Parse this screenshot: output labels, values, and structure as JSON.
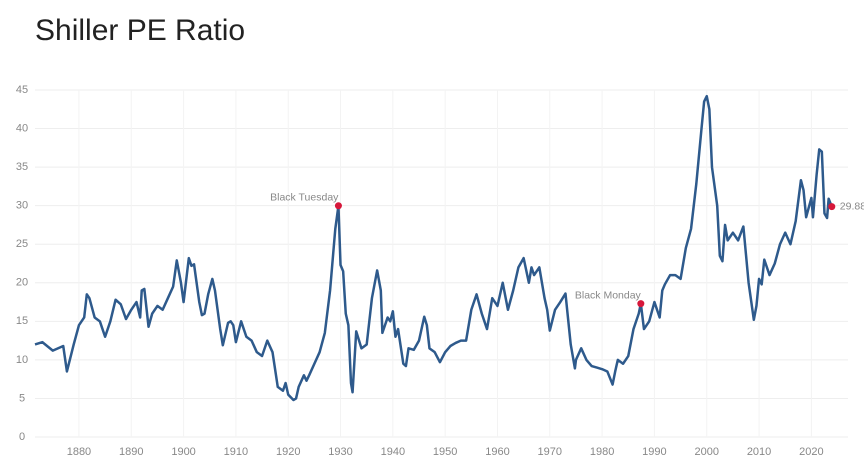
{
  "chart_data": {
    "type": "line",
    "title": "Shiller PE Ratio",
    "color": "#2e5a8c",
    "marker_color": "#d6173a",
    "grid": true,
    "x": [
      1871.6,
      1873,
      1875,
      1877,
      1877.7,
      1879,
      1880,
      1881,
      1881.5,
      1882,
      1883,
      1884,
      1885,
      1886,
      1887,
      1888,
      1889,
      1890,
      1891,
      1891.7,
      1892,
      1892.5,
      1893.3,
      1894,
      1895,
      1896,
      1897,
      1898,
      1898.7,
      1899.5,
      1900,
      1901,
      1901.5,
      1902,
      1903,
      1903.5,
      1904,
      1904.7,
      1905.5,
      1906,
      1907,
      1907.5,
      1908.5,
      1909,
      1909.5,
      1910,
      1911,
      1912,
      1913,
      1914,
      1915,
      1916,
      1917,
      1918,
      1919,
      1919.5,
      1920,
      1921,
      1921.5,
      1922,
      1923,
      1923.5,
      1924,
      1925,
      1926,
      1927,
      1928,
      1929,
      1929.6,
      1930,
      1930.5,
      1931,
      1931.5,
      1932,
      1932.3,
      1933,
      1934,
      1935,
      1936,
      1937,
      1937.7,
      1938,
      1939,
      1939.5,
      1940,
      1940.5,
      1941,
      1942,
      1942.5,
      1943,
      1944,
      1945,
      1946,
      1946.5,
      1947,
      1948,
      1949,
      1950,
      1951,
      1952,
      1953,
      1954,
      1955,
      1956,
      1957,
      1958,
      1959,
      1960,
      1961,
      1962,
      1963,
      1964,
      1965,
      1966,
      1966.5,
      1967,
      1968,
      1969,
      1969.5,
      1970,
      1971,
      1972,
      1973,
      1974,
      1974.8,
      1975,
      1976,
      1977,
      1978,
      1979,
      1980,
      1981,
      1982,
      1982.5,
      1983,
      1984,
      1985,
      1986,
      1987,
      1987.4,
      1988,
      1989,
      1990,
      1991,
      1991.5,
      1992,
      1993,
      1994,
      1995,
      1996,
      1997,
      1998,
      1999,
      1999.5,
      2000,
      2000.5,
      2001,
      2002,
      2002.5,
      2003,
      2003.5,
      2004,
      2005,
      2006,
      2007,
      2008,
      2009,
      2009.5,
      2010,
      2010.5,
      2011,
      2012,
      2013,
      2014,
      2015,
      2016,
      2017,
      2018,
      2018.5,
      2019,
      2020,
      2020.3,
      2021,
      2021.5,
      2022,
      2022.5,
      2023,
      2023.3,
      2023.9
    ],
    "values": [
      12,
      12.3,
      11.2,
      11.8,
      8.5,
      12,
      14.5,
      15.5,
      18.5,
      18,
      15.5,
      15,
      13,
      15,
      17.8,
      17.2,
      15.3,
      16.5,
      17.5,
      15.5,
      19,
      19.2,
      14.3,
      16,
      17,
      16.5,
      18,
      19.5,
      22.9,
      20,
      17.5,
      23.2,
      22.2,
      22.4,
      17.5,
      15.8,
      16,
      18.5,
      20.5,
      19,
      14,
      11.9,
      14.8,
      15,
      14.5,
      12.3,
      15,
      13,
      12.5,
      11,
      10.5,
      12.5,
      11,
      6.5,
      6,
      7,
      5.5,
      4.8,
      5,
      6.5,
      8,
      7.3,
      8,
      9.5,
      11,
      13.5,
      19,
      27,
      29.99,
      22.3,
      21.5,
      16,
      14.5,
      7,
      5.8,
      13.7,
      11.5,
      12,
      18,
      21.6,
      19,
      13.5,
      15.5,
      15,
      16.3,
      13,
      14,
      9.5,
      9.2,
      11.5,
      11.3,
      12.5,
      15.6,
      14.5,
      11.5,
      11,
      9.7,
      11,
      11.8,
      12.2,
      12.5,
      12.5,
      16.5,
      18.5,
      16,
      14,
      18,
      17,
      20,
      16.5,
      19,
      22,
      23.2,
      20,
      22,
      21,
      22,
      18,
      16.5,
      13.8,
      16.5,
      17.5,
      18.6,
      12,
      8.9,
      10,
      11.5,
      10,
      9.2,
      9,
      8.8,
      8.5,
      6.8,
      8.5,
      10,
      9.5,
      10.5,
      14,
      16,
      17.3,
      14,
      15,
      17.5,
      15.5,
      19,
      19.8,
      21,
      21,
      20.5,
      24.5,
      27,
      32.8,
      40,
      43.5,
      44.2,
      42.5,
      35,
      30,
      23.5,
      22.8,
      27.5,
      25.5,
      26.5,
      25.5,
      27.3,
      20,
      15.2,
      17,
      20.5,
      19.8,
      23,
      21,
      22.5,
      25,
      26.5,
      25,
      28,
      33.3,
      32,
      28.5,
      31,
      28.5,
      34,
      37.3,
      37,
      29,
      28.4,
      30.9,
      29.88
    ],
    "xlim": [
      1871.6,
      2027
    ],
    "ylim": [
      0,
      45
    ],
    "xticks": [
      1880,
      1890,
      1900,
      1910,
      1920,
      1930,
      1940,
      1950,
      1960,
      1970,
      1980,
      1990,
      2000,
      2010,
      2020
    ],
    "yticks": [
      0,
      5,
      10,
      15,
      20,
      25,
      30,
      35,
      40,
      45
    ],
    "annotations": [
      {
        "label": "Black Tuesday",
        "x": 1929.6,
        "y": 29.99,
        "side": "left"
      },
      {
        "label": "Black Monday",
        "x": 1987.4,
        "y": 17.3,
        "side": "left"
      },
      {
        "label": "29.88",
        "x": 2023.9,
        "y": 29.88,
        "side": "right"
      }
    ]
  }
}
